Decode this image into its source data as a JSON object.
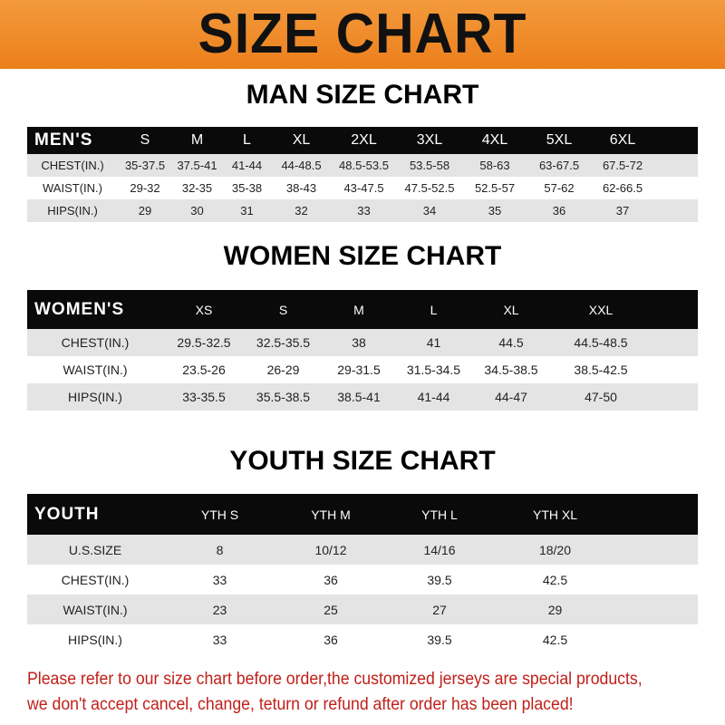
{
  "title": "SIZE CHART",
  "men": {
    "title": "MAN SIZE CHART",
    "header": [
      "MEN'S",
      "S",
      "M",
      "L",
      "XL",
      "2XL",
      "3XL",
      "4XL",
      "5XL",
      "6XL"
    ],
    "rows": [
      [
        "CHEST(IN.)",
        "35-37.5",
        "37.5-41",
        "41-44",
        "44-48.5",
        "48.5-53.5",
        "53.5-58",
        "58-63",
        "63-67.5",
        "67.5-72"
      ],
      [
        "WAIST(IN.)",
        "29-32",
        "32-35",
        "35-38",
        "38-43",
        "43-47.5",
        "47.5-52.5",
        "52.5-57",
        "57-62",
        "62-66.5"
      ],
      [
        "HIPS(IN.)",
        "29",
        "30",
        "31",
        "32",
        "33",
        "34",
        "35",
        "36",
        "37"
      ]
    ]
  },
  "women": {
    "title": "WOMEN SIZE CHART",
    "header": [
      "WOMEN'S",
      "XS",
      "S",
      "M",
      "L",
      "XL",
      "XXL"
    ],
    "rows": [
      [
        "CHEST(IN.)",
        "29.5-32.5",
        "32.5-35.5",
        "38",
        "41",
        "44.5",
        "44.5-48.5"
      ],
      [
        "WAIST(IN.)",
        "23.5-26",
        "26-29",
        "29-31.5",
        "31.5-34.5",
        "34.5-38.5",
        "38.5-42.5"
      ],
      [
        "HIPS(IN.)",
        "33-35.5",
        "35.5-38.5",
        "38.5-41",
        "41-44",
        "44-47",
        "47-50"
      ]
    ]
  },
  "youth": {
    "title": "YOUTH SIZE CHART",
    "header": [
      "YOUTH",
      "YTH S",
      "YTH M",
      "YTH L",
      "YTH XL"
    ],
    "rows": [
      [
        "U.S.SIZE",
        "8",
        "10/12",
        "14/16",
        "18/20"
      ],
      [
        "CHEST(IN.)",
        "33",
        "36",
        "39.5",
        "42.5"
      ],
      [
        "WAIST(IN.)",
        "23",
        "25",
        "27",
        "29"
      ],
      [
        "HIPS(IN.)",
        "33",
        "36",
        "39.5",
        "42.5"
      ]
    ]
  },
  "footer": {
    "line1": "Please refer to our size chart before order,the customized jerseys are special products,",
    "line2": "we don't accept cancel, change, teturn or refund after order has been placed!"
  },
  "colors": {
    "banner": "#ec7f1c",
    "header_row": "#0a0a0a",
    "stripe": "#e4e4e4",
    "notice": "#c0201a"
  }
}
